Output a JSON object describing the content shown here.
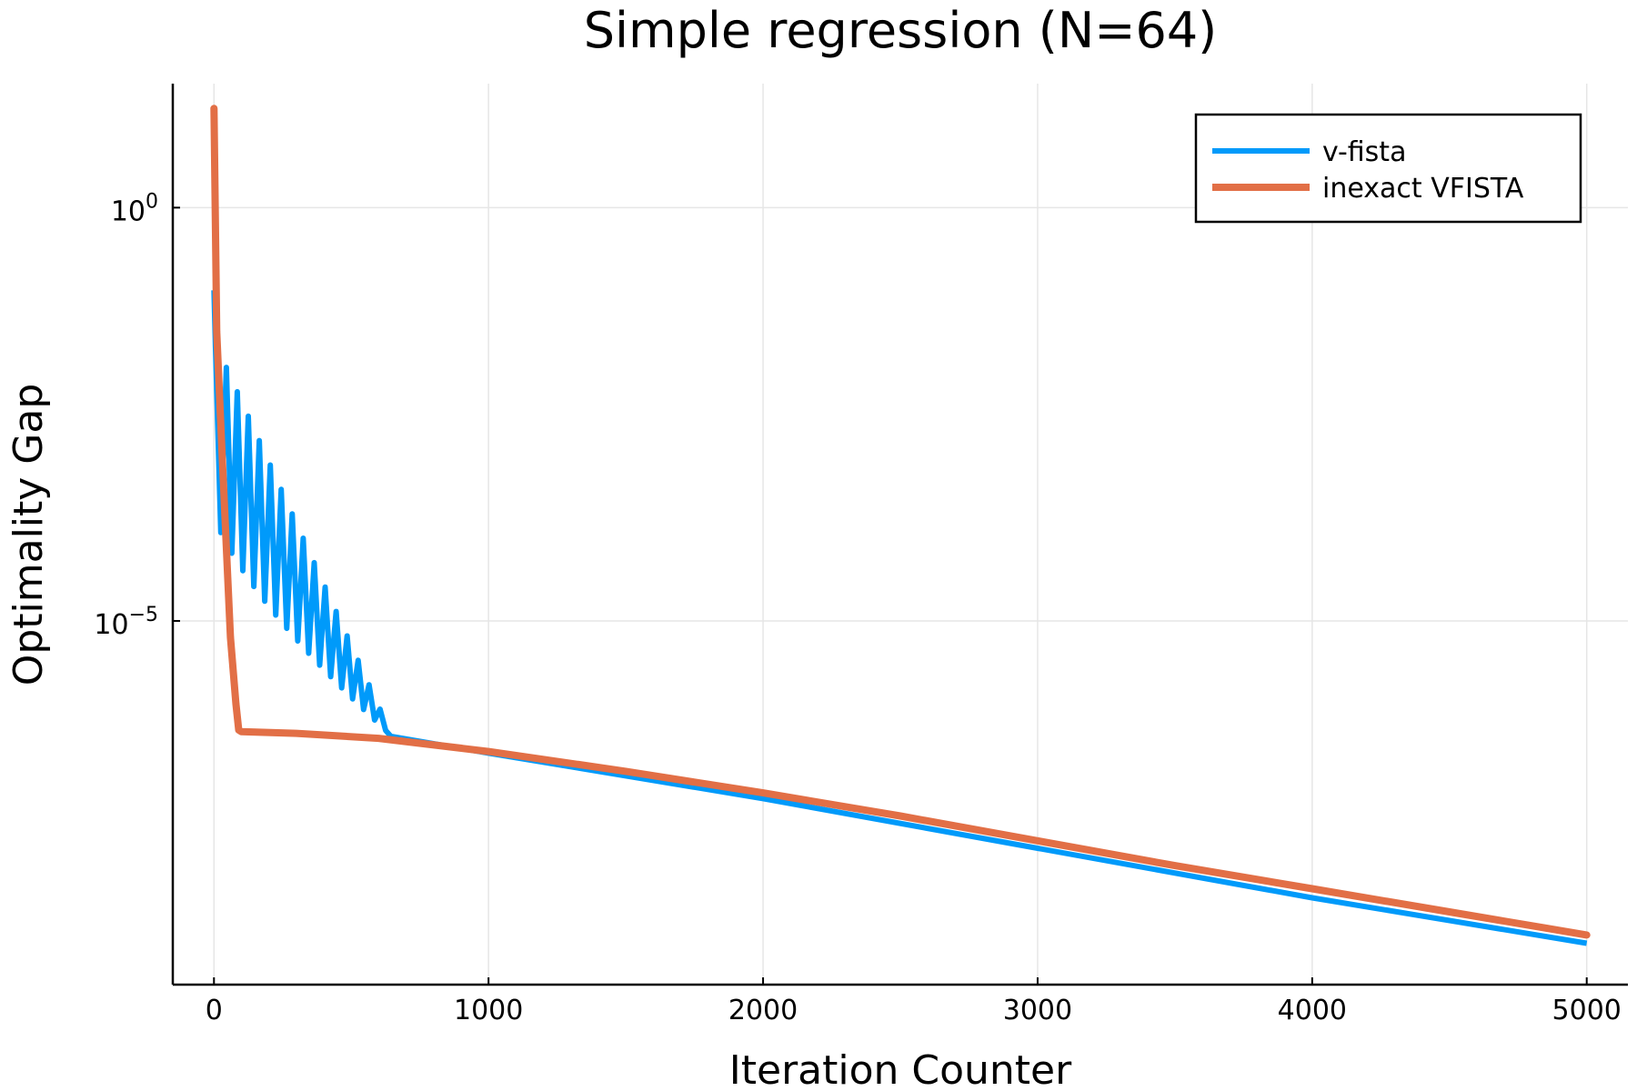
{
  "chart_data": {
    "type": "line",
    "title": "Simple regression (N=64)",
    "xlabel": "Iteration Counter",
    "ylabel": "Optimality Gap",
    "xlim": [
      -150,
      5150
    ],
    "ylim_log10": [
      -9.4,
      1.5
    ],
    "yscale": "log",
    "grid": true,
    "legend_position": "top-right",
    "x_ticks": [
      {
        "value": 0,
        "label": "0"
      },
      {
        "value": 1000,
        "label": "1000"
      },
      {
        "value": 2000,
        "label": "2000"
      },
      {
        "value": 3000,
        "label": "3000"
      },
      {
        "value": 4000,
        "label": "4000"
      },
      {
        "value": 5000,
        "label": "5000"
      }
    ],
    "y_ticks": [
      {
        "log10": 0,
        "base": "10",
        "exponent": "0"
      },
      {
        "log10": -5,
        "base": "10",
        "exponent": "−5"
      }
    ],
    "series": [
      {
        "name": "v-fista",
        "color": "#009AFA",
        "note": "oscillating decay until ~650, then smooth",
        "points": [
          [
            0,
            -1.0
          ],
          [
            650,
            -6.4
          ],
          [
            1000,
            -6.6
          ],
          [
            2000,
            -7.15
          ],
          [
            3000,
            -7.75
          ],
          [
            4000,
            -8.35
          ],
          [
            5000,
            -8.9
          ]
        ],
        "oscillation": {
          "start": 0,
          "end": 650,
          "upper_start_log10": -1.6,
          "lower_start_log10": -2.8,
          "period": 40
        }
      },
      {
        "name": "inexact VFISTA",
        "color": "#E26F46",
        "points": [
          [
            0,
            1.2
          ],
          [
            10,
            -1.5
          ],
          [
            30,
            -3.0
          ],
          [
            60,
            -5.2
          ],
          [
            80,
            -6.0
          ],
          [
            90,
            -6.32
          ],
          [
            100,
            -6.34
          ],
          [
            300,
            -6.36
          ],
          [
            600,
            -6.42
          ],
          [
            1000,
            -6.58
          ],
          [
            1500,
            -6.82
          ],
          [
            2000,
            -7.08
          ],
          [
            2500,
            -7.36
          ],
          [
            3000,
            -7.66
          ],
          [
            3500,
            -7.96
          ],
          [
            4000,
            -8.24
          ],
          [
            4500,
            -8.52
          ],
          [
            5000,
            -8.8
          ]
        ]
      }
    ]
  }
}
